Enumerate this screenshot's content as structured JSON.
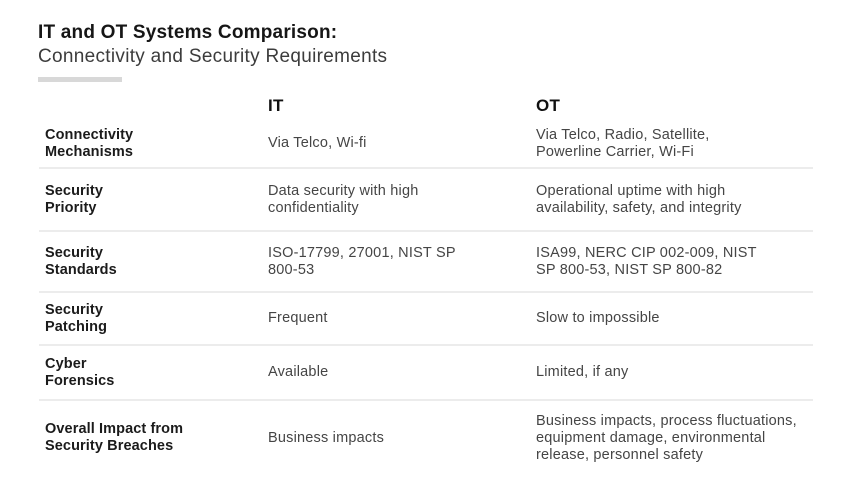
{
  "header": {
    "title": "IT and OT Systems Comparison:",
    "subtitle": "Connectivity and Security Requirements"
  },
  "table": {
    "column_headers": {
      "it": "IT",
      "ot": "OT"
    },
    "rows": [
      {
        "label": "Connectivity\nMechanisms",
        "it": "Via Telco, Wi-fi",
        "ot": "Via Telco, Radio, Satellite,\nPowerline Carrier, Wi-Fi"
      },
      {
        "label": "Security\nPriority",
        "it": "Data security with high\nconfidentiality",
        "ot": "Operational uptime with high\navailability, safety, and integrity"
      },
      {
        "label": "Security\nStandards",
        "it": "ISO-17799, 27001, NIST SP\n800-53",
        "ot": "ISA99, NERC CIP 002-009, NIST\nSP 800-53, NIST SP 800-82"
      },
      {
        "label": "Security\nPatching",
        "it": "Frequent",
        "ot": "Slow to impossible"
      },
      {
        "label": "Cyber\nForensics",
        "it": "Available",
        "ot": "Limited, if any"
      },
      {
        "label": "Overall Impact from\nSecurity Breaches",
        "it": "Business impacts",
        "ot": "Business impacts, process fluctuations,\nequipment damage, environmental\nrelease, personnel safety"
      }
    ]
  },
  "colors": {
    "accent_bar": "#d8d8d8",
    "divider": "#ececec",
    "title_text": "#161616",
    "body_text": "#454545"
  }
}
